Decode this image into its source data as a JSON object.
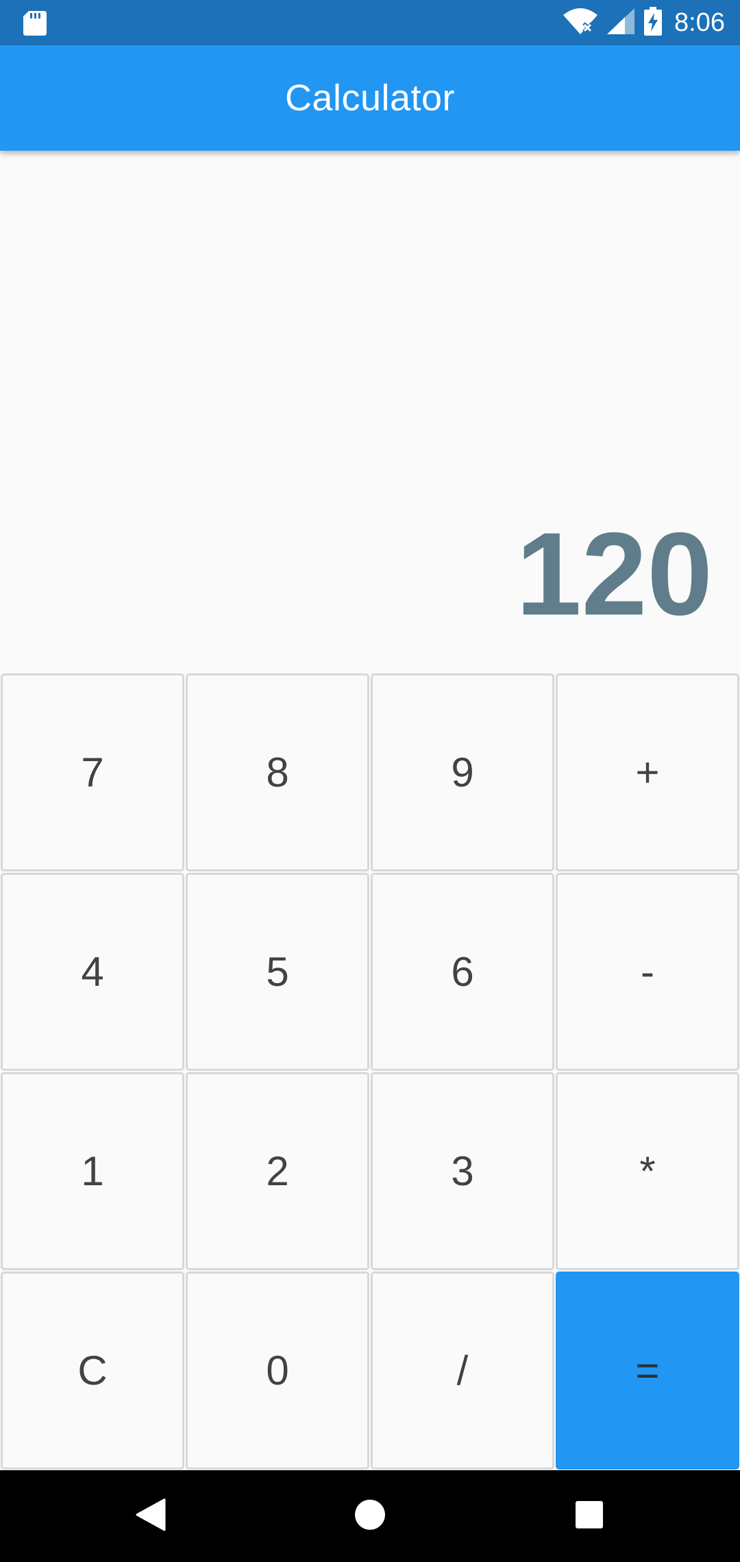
{
  "status_bar": {
    "time": "8:06",
    "icons": [
      "sd-card-icon",
      "wifi-icon",
      "cellular-signal-icon",
      "battery-charging-icon"
    ],
    "color": "#1c71b8"
  },
  "app_bar": {
    "title": "Calculator",
    "color": "#2196f3"
  },
  "display": {
    "value": "120",
    "color": "#607d8b"
  },
  "keypad": {
    "rows": [
      [
        "7",
        "8",
        "9",
        "+"
      ],
      [
        "4",
        "5",
        "6",
        "-"
      ],
      [
        "1",
        "2",
        "3",
        "*"
      ],
      [
        "C",
        "0",
        "/",
        "="
      ]
    ],
    "equals_color": "#2196f3"
  },
  "nav_bar": {
    "icons": [
      "back-icon",
      "home-icon",
      "recents-icon"
    ]
  }
}
